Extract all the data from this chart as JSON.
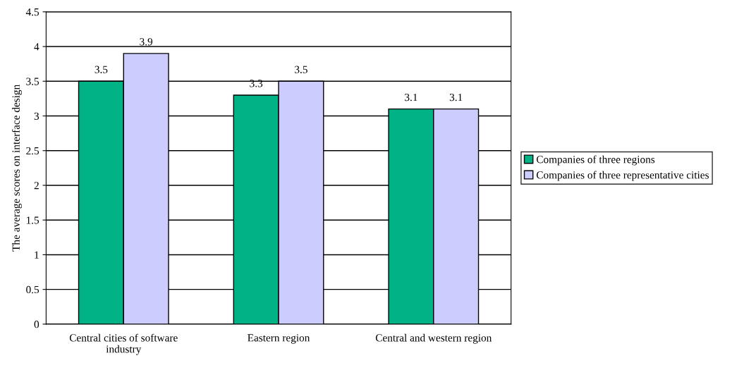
{
  "chart_data": {
    "type": "bar",
    "ylabel": "The average scores on interface design",
    "categories": [
      "Central cities of software\nindustry",
      "Eastern region",
      "Central and western region"
    ],
    "series": [
      {
        "name": "Companies of three regions",
        "color": "#00b386",
        "values": [
          3.5,
          3.3,
          3.1
        ]
      },
      {
        "name": "Companies of three representative cities",
        "color": "#ccccff",
        "values": [
          3.9,
          3.5,
          3.1
        ]
      }
    ],
    "ylim": [
      0,
      4.5
    ],
    "yticks": [
      0,
      0.5,
      1,
      1.5,
      2,
      2.5,
      3,
      3.5,
      4,
      4.5
    ],
    "grid": "y",
    "legend": "right",
    "data_labels": true
  }
}
